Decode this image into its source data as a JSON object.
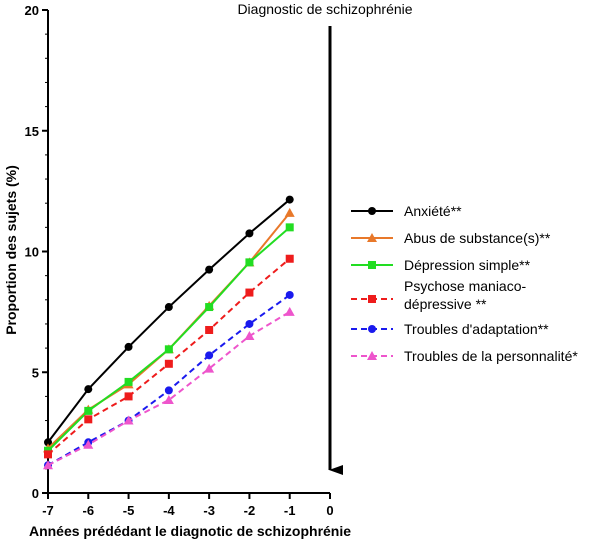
{
  "chart_data": {
    "type": "line",
    "xlabel": "Années prédédant le diagnotic de schizophrénie",
    "ylabel": "Proportion des sujets (%)",
    "annotation": "Diagnostic de schizophrénie",
    "xlim": [
      -7,
      0
    ],
    "ylim": [
      0,
      20
    ],
    "x_ticks": [
      "-7",
      "-6",
      "-5",
      "-4",
      "-3",
      "-2",
      "-1",
      "0"
    ],
    "y_ticks": [
      "0",
      "5",
      "10",
      "15",
      "20"
    ],
    "x": [
      -7,
      -6,
      -5,
      -4,
      -3,
      -2,
      -1
    ],
    "grid": false,
    "legend_position": "right",
    "series": [
      {
        "name": "Anxiété**",
        "values": [
          2.1,
          4.3,
          6.05,
          7.7,
          9.25,
          10.75,
          12.15
        ],
        "color": "#000000",
        "marker": "circle",
        "dash": "solid"
      },
      {
        "name": "Abus de substance(s)**",
        "values": [
          1.85,
          3.45,
          4.5,
          5.95,
          7.75,
          9.55,
          11.6
        ],
        "color": "#e8782a",
        "marker": "triangle",
        "dash": "solid"
      },
      {
        "name": "Dépression simple**",
        "values": [
          1.75,
          3.4,
          4.6,
          5.95,
          7.7,
          9.55,
          11.0
        ],
        "color": "#22dd22",
        "marker": "square",
        "dash": "solid"
      },
      {
        "name_lines": [
          "Psychose maniaco-",
          "dépressive **"
        ],
        "values": [
          1.6,
          3.05,
          4.0,
          5.35,
          6.75,
          8.3,
          9.7
        ],
        "color": "#ee1c1c",
        "marker": "square",
        "dash": "dashed"
      },
      {
        "name": "Troubles d'adaptation**",
        "values": [
          1.15,
          2.1,
          3.0,
          4.25,
          5.7,
          7.0,
          8.2
        ],
        "color": "#1a1aee",
        "marker": "circle",
        "dash": "dashed"
      },
      {
        "name": "Troubles de la personnalité*",
        "values": [
          1.15,
          2.0,
          3.0,
          3.85,
          5.15,
          6.5,
          7.5
        ],
        "color": "#ee55cc",
        "marker": "triangle",
        "dash": "dashed"
      }
    ]
  }
}
